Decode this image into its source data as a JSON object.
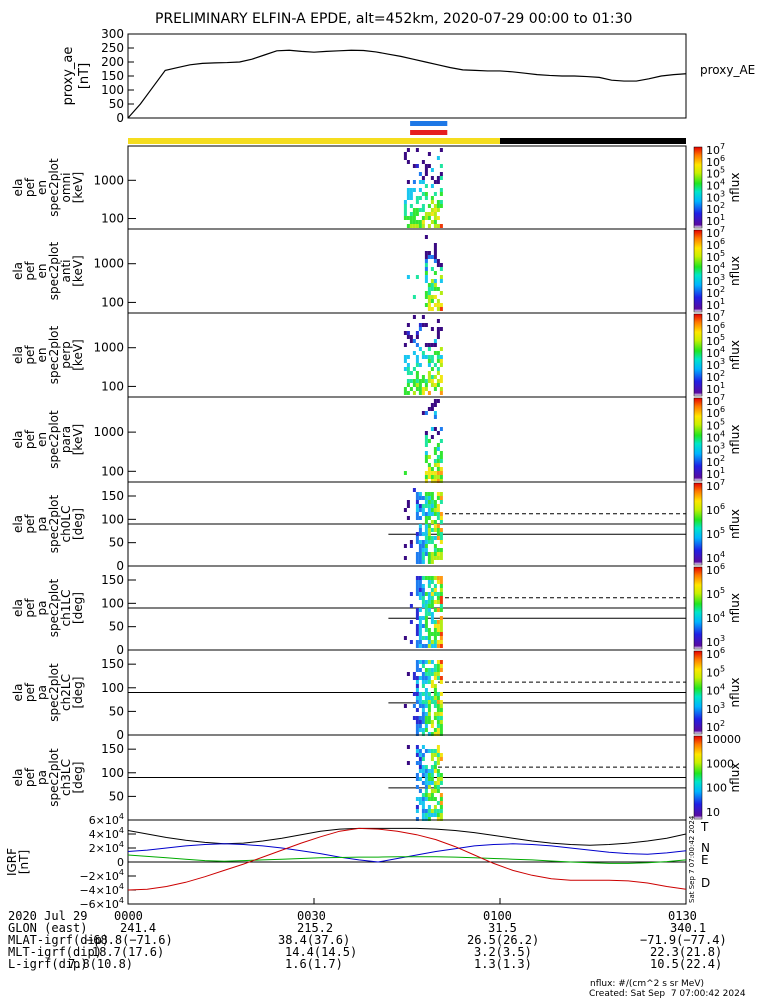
{
  "title": "PRELIMINARY ELFIN-A EPDE, alt=452km, 2020-07-29 00:00 to 01:30",
  "colors": {
    "yellow": "#f5dd1e",
    "black": "#000000",
    "blue": "#1e78e6",
    "red": "#e61e1e",
    "bx": "#0000cc",
    "by": "#00aa00",
    "bz": "#cc0000"
  },
  "chart_data": [
    {
      "type": "line",
      "ylabel": "proxy_ae [nT]",
      "legend": "proxy_AE",
      "ylim": [
        0,
        300
      ],
      "yticks": [
        "0",
        "50",
        "100",
        "150",
        "200",
        "250",
        "300"
      ],
      "x_minutes": [
        0,
        2,
        4,
        6,
        8,
        10,
        12,
        14,
        16,
        18,
        20,
        22,
        24,
        26,
        28,
        30,
        32,
        34,
        36,
        38,
        40,
        42,
        44,
        46,
        48,
        50,
        52,
        54,
        56,
        58,
        60,
        62,
        64,
        66,
        68,
        70,
        72,
        74,
        76,
        78,
        80,
        82,
        84,
        86,
        88,
        90
      ],
      "values": [
        0,
        50,
        110,
        170,
        180,
        190,
        195,
        197,
        198,
        200,
        210,
        225,
        240,
        242,
        238,
        235,
        238,
        240,
        242,
        241,
        236,
        228,
        220,
        210,
        200,
        190,
        180,
        172,
        170,
        168,
        168,
        165,
        160,
        155,
        152,
        150,
        150,
        148,
        145,
        135,
        132,
        132,
        140,
        150,
        155,
        158
      ]
    },
    {
      "type": "area",
      "name": "sector_bar",
      "segments": [
        {
          "from_min": 0,
          "to_min": 60,
          "color": "yellow"
        },
        {
          "from_min": 60,
          "to_min": 90,
          "color": "black"
        }
      ],
      "markers": [
        {
          "color": "blue",
          "from_min": 45.5,
          "to_min": 51.5
        },
        {
          "color": "red",
          "from_min": 45.5,
          "to_min": 51.5
        }
      ]
    },
    {
      "type": "heatmap",
      "name": "omni",
      "ylabel": [
        "ela",
        "pef",
        "en",
        "spec2plot",
        "omni",
        "[keV]"
      ],
      "ylog": true,
      "yticks": [
        "100",
        "1000"
      ],
      "cbar_labels": [
        "10^7",
        "10^6",
        "10^5",
        "10^4",
        "10^3",
        "10^2",
        "10^1"
      ],
      "cbar_title": "nflux"
    },
    {
      "type": "heatmap",
      "name": "anti",
      "ylabel": [
        "ela",
        "pef",
        "en",
        "spec2plot",
        "anti",
        "[keV]"
      ],
      "ylog": true,
      "yticks": [
        "100",
        "1000"
      ],
      "cbar_labels": [
        "10^7",
        "10^6",
        "10^5",
        "10^4",
        "10^3",
        "10^2",
        "10^1"
      ],
      "cbar_title": "nflux"
    },
    {
      "type": "heatmap",
      "name": "perp",
      "ylabel": [
        "ela",
        "pef",
        "en",
        "spec2plot",
        "perp",
        "[keV]"
      ],
      "ylog": true,
      "yticks": [
        "100",
        "1000"
      ],
      "cbar_labels": [
        "10^7",
        "10^6",
        "10^5",
        "10^4",
        "10^3",
        "10^2",
        "10^1"
      ],
      "cbar_title": "nflux"
    },
    {
      "type": "heatmap",
      "name": "para",
      "ylabel": [
        "ela",
        "pef",
        "en",
        "spec2plot",
        "para",
        "[keV]"
      ],
      "ylog": true,
      "yticks": [
        "100",
        "1000"
      ],
      "cbar_labels": [
        "10^7",
        "10^6",
        "10^5",
        "10^4",
        "10^3",
        "10^2",
        "10^1"
      ],
      "cbar_title": "nflux"
    },
    {
      "type": "heatmap",
      "name": "ch0LC",
      "ylabel": [
        "ela",
        "pef",
        "pa",
        "spec2plot",
        "ch0LC",
        "[deg]"
      ],
      "ylim": [
        0,
        180
      ],
      "yticks": [
        "0",
        "50",
        "100",
        "150"
      ],
      "cbar_labels": [
        "10^7",
        "10^6",
        "10^5",
        "10^4"
      ],
      "cbar_title": "nflux"
    },
    {
      "type": "heatmap",
      "name": "ch1LC",
      "ylabel": [
        "ela",
        "pef",
        "pa",
        "spec2plot",
        "ch1LC",
        "[deg]"
      ],
      "ylim": [
        0,
        180
      ],
      "yticks": [
        "0",
        "50",
        "100",
        "150"
      ],
      "cbar_labels": [
        "10^6",
        "10^5",
        "10^4",
        "10^3"
      ],
      "cbar_title": "nflux"
    },
    {
      "type": "heatmap",
      "name": "ch2LC",
      "ylabel": [
        "ela",
        "pef",
        "pa",
        "spec2plot",
        "ch2LC",
        "[deg]"
      ],
      "ylim": [
        0,
        180
      ],
      "yticks": [
        "0",
        "50",
        "100",
        "150"
      ],
      "cbar_labels": [
        "10^6",
        "10^5",
        "10^4",
        "10^3",
        "10^2"
      ],
      "cbar_title": "nflux"
    },
    {
      "type": "heatmap",
      "name": "ch3LC",
      "ylabel": [
        "ela",
        "pef",
        "pa",
        "spec2plot",
        "ch3LC",
        "[deg]"
      ],
      "ylim": [
        0,
        180
      ],
      "yticks": [
        "50",
        "100",
        "150"
      ],
      "cbar_labels": [
        "10000",
        "1000",
        "100",
        "10"
      ],
      "cbar_title": "nflux"
    },
    {
      "type": "line",
      "name": "IGRF",
      "ylabel": [
        "IGRF",
        "[nT]"
      ],
      "ylim": [
        -60000,
        60000
      ],
      "yticks": [
        "6×10^4",
        "4×10^4",
        "2×10^4",
        "0",
        "−2×10^4",
        "−4×10^4",
        "−6×10^4"
      ],
      "series": [
        {
          "name": "T",
          "color": "black",
          "values": [
            45000,
            40000,
            35000,
            31000,
            28000,
            26000,
            27000,
            30000,
            34000,
            39000,
            44000,
            47000,
            48000,
            48000,
            48000,
            48000,
            47000,
            45000,
            42000,
            38000,
            34000,
            30000,
            27000,
            25000,
            24000,
            25000,
            27000,
            30000,
            34000,
            40000
          ]
        },
        {
          "name": "N",
          "color": "bx",
          "values": [
            15000,
            17000,
            20000,
            23000,
            25000,
            26000,
            25000,
            23000,
            20000,
            16000,
            12000,
            7000,
            3000,
            0,
            5000,
            10000,
            15000,
            19000,
            23000,
            25000,
            26000,
            25000,
            23000,
            20000,
            17000,
            14000,
            12000,
            11000,
            13000,
            16000
          ]
        },
        {
          "name": "E",
          "color": "by",
          "values": [
            10000,
            8000,
            6000,
            4000,
            2000,
            1000,
            2000,
            3000,
            4000,
            5000,
            6000,
            6500,
            7000,
            7000,
            7500,
            7500,
            7500,
            7000,
            6000,
            5000,
            4000,
            3000,
            1500,
            0,
            -1000,
            -2000,
            -2000,
            -1000,
            500,
            3000
          ]
        },
        {
          "name": "D",
          "color": "bz",
          "values": [
            -40000,
            -39000,
            -35000,
            -29000,
            -21000,
            -12000,
            -3000,
            7000,
            17000,
            27000,
            36000,
            44000,
            48000,
            47000,
            44000,
            39000,
            32000,
            22000,
            10000,
            -2000,
            -12000,
            -19000,
            -24000,
            -26000,
            -26000,
            -26000,
            -27000,
            -30000,
            -35000,
            -39000
          ]
        }
      ]
    }
  ],
  "xaxis": {
    "rows": [
      {
        "label": "2020 Jul 29",
        "values": [
          "0000",
          "0030",
          "0100",
          "0130"
        ]
      },
      {
        "label": "GLON (east)",
        "values": [
          "241.4",
          "215.2",
          "31.5",
          "340.1"
        ]
      },
      {
        "label": "MLAT-igrf(dip)",
        "values": [
          "−68.8(−71.6)",
          "38.4(37.6)",
          "26.5(26.2)",
          "−71.9(−77.4)"
        ]
      },
      {
        "label": "MLT-igrf(dip)",
        "values": [
          "18.7(17.6)",
          "14.4(14.5)",
          "3.2(3.5)",
          "22.3(21.8)"
        ]
      },
      {
        "label": "L-igrf(dip)",
        "values": [
          "7.8(10.8)",
          "1.6(1.7)",
          "1.3(1.3)",
          "10.5(22.4)"
        ]
      }
    ]
  },
  "footer": {
    "units": "nflux: #/(cm^2 s sr MeV)",
    "created": "Created: Sat Sep  7 07:00:42 2024",
    "side_stamp": "Sat Sep  7 07:00:42 2024"
  }
}
